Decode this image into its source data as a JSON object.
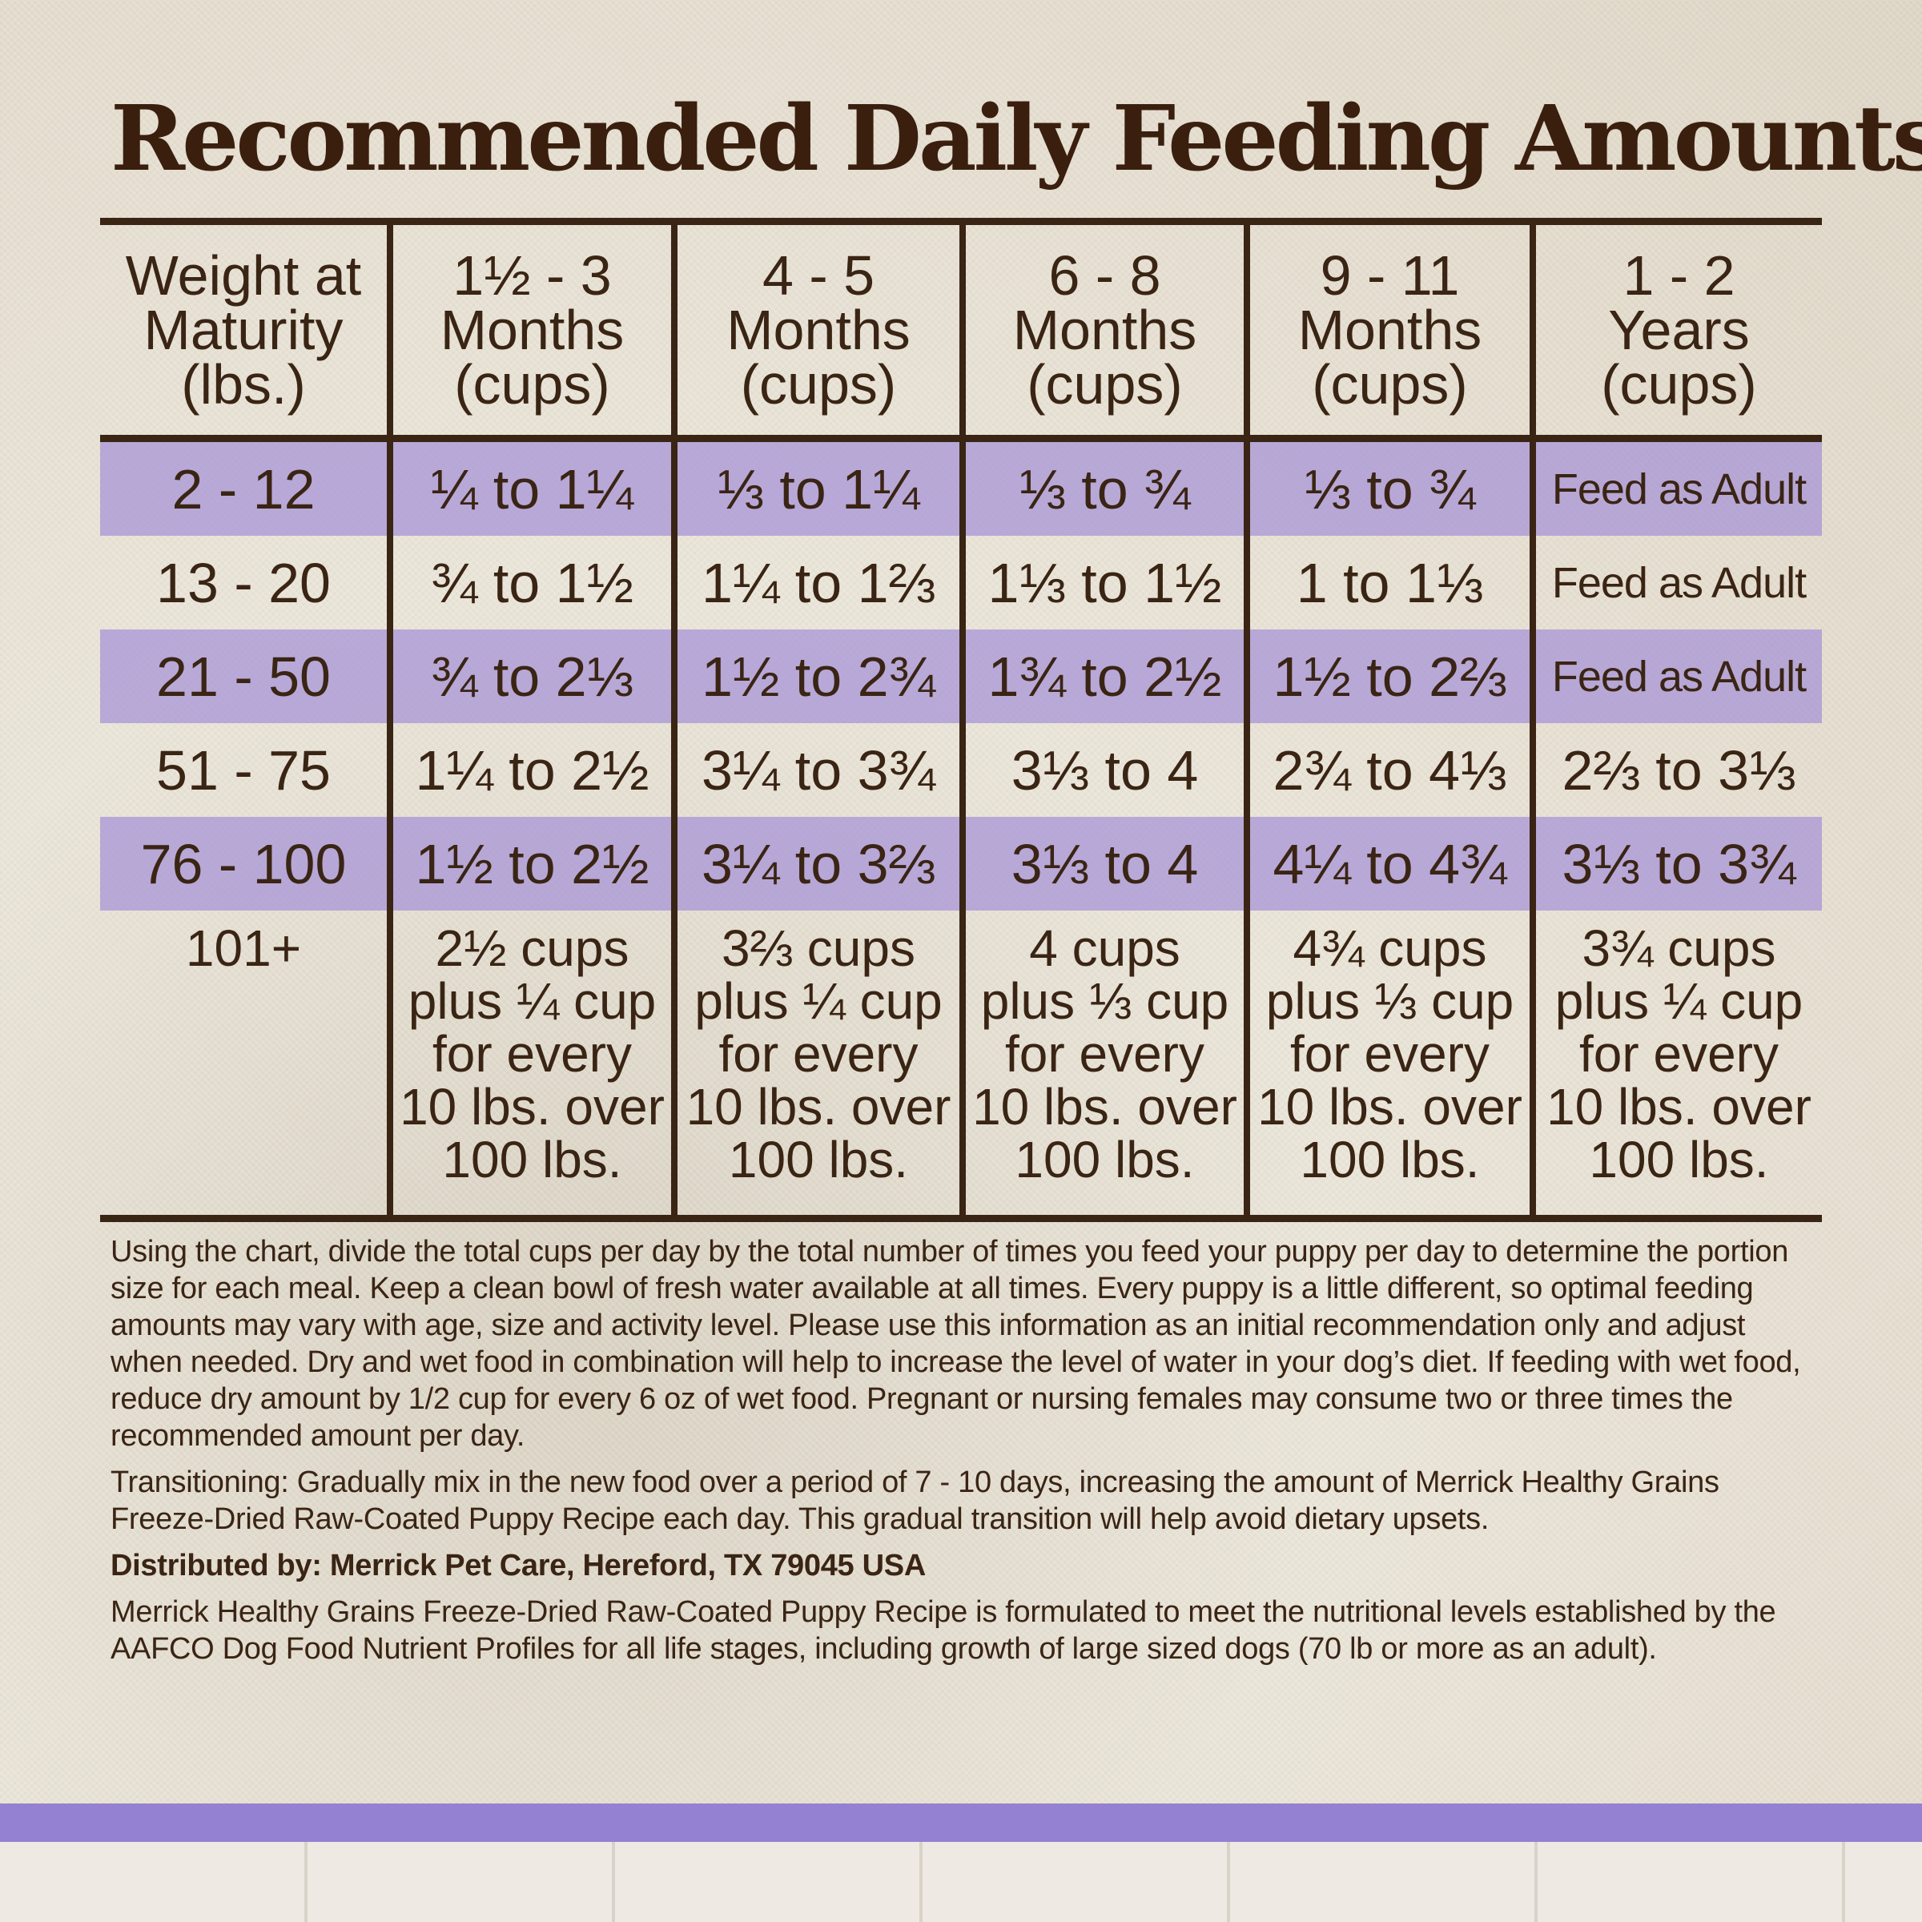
{
  "title": "Recommended Daily Feeding Amounts:",
  "colors": {
    "text": "#3a2414",
    "row_highlight": "#b4a3dc",
    "band": "#9581d2"
  },
  "table": {
    "headers": [
      [
        "Weight at",
        "Maturity",
        "(lbs.)"
      ],
      [
        "1½ - 3",
        "Months",
        "(cups)"
      ],
      [
        "4 - 5",
        "Months",
        "(cups)"
      ],
      [
        "6 - 8",
        "Months",
        "(cups)"
      ],
      [
        "9 - 11",
        "Months",
        "(cups)"
      ],
      [
        "1 - 2",
        "Years",
        "(cups)"
      ]
    ],
    "rows": [
      [
        "2 - 12",
        "¼ to 1¼",
        "⅓ to 1¼",
        "⅓ to ¾",
        "⅓ to ¾",
        "Feed as Adult"
      ],
      [
        "13 - 20",
        "¾ to 1½",
        "1¼ to 1⅔",
        "1⅓ to 1½",
        "1 to 1⅓",
        "Feed as Adult"
      ],
      [
        "21 - 50",
        "¾ to 2⅓",
        "1½ to 2¾",
        "1¾ to 2½",
        "1½ to 2⅔",
        "Feed as Adult"
      ],
      [
        "51 - 75",
        "1¼ to 2½",
        "3¼ to 3¾",
        "3⅓ to 4",
        "2¾ to 4⅓",
        "2⅔ to 3⅓"
      ],
      [
        "76 - 100",
        "1½ to 2½",
        "3¼ to 3⅔",
        "3⅓ to 4",
        "4¼ to 4¾",
        "3⅓ to 3¾"
      ]
    ],
    "last_row": [
      [
        "101+"
      ],
      [
        "2½ cups",
        "plus ¼ cup",
        "for every",
        "10 lbs. over",
        "100 lbs."
      ],
      [
        "3⅔ cups",
        "plus ¼ cup",
        "for every",
        "10 lbs. over",
        "100 lbs."
      ],
      [
        "4 cups",
        "plus ⅓ cup",
        "for every",
        "10 lbs. over",
        "100 lbs."
      ],
      [
        "4¾ cups",
        "plus ⅓ cup",
        "for every",
        "10 lbs. over",
        "100 lbs."
      ],
      [
        "3¾ cups",
        "plus ¼ cup",
        "for every",
        "10 lbs. over",
        "100 lbs."
      ]
    ]
  },
  "notes": {
    "usage": "Using the chart, divide the total cups per day by the total number of times you feed your puppy per day to determine the portion size for each meal. Keep a clean bowl of fresh water available at all times. Every puppy is a little different, so optimal feeding amounts may vary with age, size and activity level. Please use this information as an initial recommendation only and adjust when needed. Dry and wet food in combination will help to increase the level of water in your dog’s diet. If feeding with wet food, reduce dry amount by 1/2 cup for every 6 oz of wet food. Pregnant or nursing females may consume two or three times the recommended amount per day.",
    "transitioning": "Transitioning: Gradually mix in the new food over a period of 7 - 10 days, increasing the amount of Merrick Healthy Grains Freeze-Dried Raw-Coated Puppy Recipe each day. This gradual transition will help avoid dietary upsets.",
    "distributor": "Distributed by: Merrick Pet Care, Hereford, TX 79045 USA",
    "aafco": "Merrick Healthy Grains Freeze-Dried Raw-Coated Puppy Recipe is formulated to meet the nutritional levels established by the AAFCO Dog Food Nutrient Profiles for all life stages, including growth of large sized dogs (70 lb or more as an adult)."
  }
}
